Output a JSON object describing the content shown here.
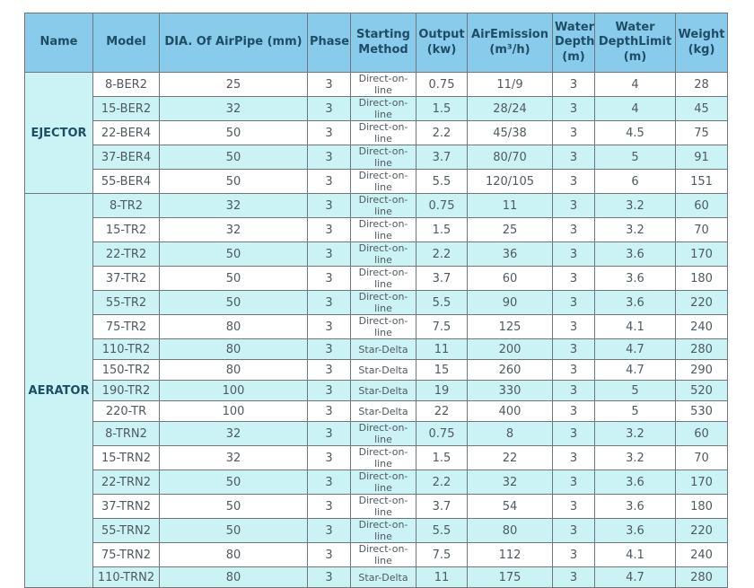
{
  "colors": {
    "header_bg": "#89cbea",
    "header_text": "#1e4d66",
    "stripe_bg": "#cbf3f6",
    "body_text": "#4e5a5f",
    "border": "#6e787c",
    "page_bg": "#ffffff"
  },
  "table": {
    "columns": [
      "Name",
      "Model",
      "DIA. Of AirPipe (mm)",
      "Phase",
      "Starting Method",
      "Output (kw)",
      "AirEmission (m³/h)",
      "Water Depth (m)",
      "Water DepthLimit (m)",
      "Weight (kg)"
    ],
    "groups": [
      {
        "name": "EJECTOR",
        "rows": [
          [
            "8-BER2",
            "25",
            "3",
            "Direct-on-line",
            "0.75",
            "11/9",
            "3",
            "4",
            "28"
          ],
          [
            "15-BER2",
            "32",
            "3",
            "Direct-on-line",
            "1.5",
            "28/24",
            "3",
            "4",
            "45"
          ],
          [
            "22-BER4",
            "50",
            "3",
            "Direct-on-line",
            "2.2",
            "45/38",
            "3",
            "4.5",
            "75"
          ],
          [
            "37-BER4",
            "50",
            "3",
            "Direct-on-line",
            "3.7",
            "80/70",
            "3",
            "5",
            "91"
          ],
          [
            "55-BER4",
            "50",
            "3",
            "Direct-on-line",
            "5.5",
            "120/105",
            "3",
            "6",
            "151"
          ]
        ]
      },
      {
        "name": "AERATOR",
        "rows": [
          [
            "8-TR2",
            "32",
            "3",
            "Direct-on-line",
            "0.75",
            "11",
            "3",
            "3.2",
            "60"
          ],
          [
            "15-TR2",
            "32",
            "3",
            "Direct-on-line",
            "1.5",
            "25",
            "3",
            "3.2",
            "70"
          ],
          [
            "22-TR2",
            "50",
            "3",
            "Direct-on-line",
            "2.2",
            "36",
            "3",
            "3.6",
            "170"
          ],
          [
            "37-TR2",
            "50",
            "3",
            "Direct-on-line",
            "3.7",
            "60",
            "3",
            "3.6",
            "180"
          ],
          [
            "55-TR2",
            "50",
            "3",
            "Direct-on-line",
            "5.5",
            "90",
            "3",
            "3.6",
            "220"
          ],
          [
            "75-TR2",
            "80",
            "3",
            "Direct-on-line",
            "7.5",
            "125",
            "3",
            "4.1",
            "240"
          ],
          [
            "110-TR2",
            "80",
            "3",
            "Star-Delta",
            "11",
            "200",
            "3",
            "4.7",
            "280"
          ],
          [
            "150-TR2",
            "80",
            "3",
            "Star-Delta",
            "15",
            "260",
            "3",
            "4.7",
            "290"
          ],
          [
            "190-TR2",
            "100",
            "3",
            "Star-Delta",
            "19",
            "330",
            "3",
            "5",
            "520"
          ],
          [
            "220-TR",
            "100",
            "3",
            "Star-Delta",
            "22",
            "400",
            "3",
            "5",
            "530"
          ],
          [
            "8-TRN2",
            "32",
            "3",
            "Direct-on-line",
            "0.75",
            "8",
            "3",
            "3.2",
            "60"
          ],
          [
            "15-TRN2",
            "32",
            "3",
            "Direct-on-line",
            "1.5",
            "22",
            "3",
            "3.2",
            "70"
          ],
          [
            "22-TRN2",
            "50",
            "3",
            "Direct-on-line",
            "2.2",
            "32",
            "3",
            "3.6",
            "170"
          ],
          [
            "37-TRN2",
            "50",
            "3",
            "Direct-on-line",
            "3.7",
            "54",
            "3",
            "3.6",
            "180"
          ],
          [
            "55-TRN2",
            "50",
            "3",
            "Direct-on-line",
            "5.5",
            "80",
            "3",
            "3.6",
            "220"
          ],
          [
            "75-TRN2",
            "80",
            "3",
            "Direct-on-line",
            "7.5",
            "112",
            "3",
            "4.1",
            "240"
          ],
          [
            "110-TRN2",
            "80",
            "3",
            "Star-Delta",
            "11",
            "175",
            "3",
            "4.7",
            "280"
          ]
        ]
      }
    ]
  }
}
